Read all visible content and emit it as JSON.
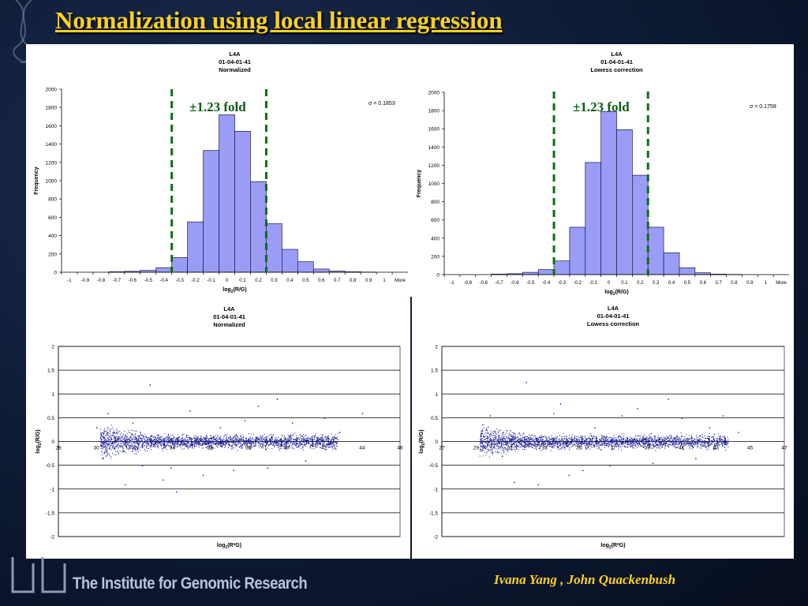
{
  "slide": {
    "title": "Normalization using local linear regression",
    "institute": "The Institute for Genomic Research",
    "authors": "Ivana Yang , John Quackenbush"
  },
  "colors": {
    "bar_fill": "#9a9cf5",
    "bar_stroke": "#1a1a4d",
    "marker": "#0d0d8c",
    "fold_line": "#0a6e14",
    "title": "#ffd21a"
  },
  "annotations": {
    "fold_left": "±1.23 fold",
    "fold_right": "±1.23 fold"
  },
  "chart_data": [
    {
      "type": "bar",
      "title": "L4A",
      "subtitle": "01-04-01-41",
      "subtitle2": "Normalized",
      "categories": [
        "-1",
        "-0.9",
        "-0.8",
        "-0.7",
        "-0.6",
        "-0.5",
        "-0.4",
        "-0.3",
        "-0.2",
        "-0.1",
        "0",
        "0.1",
        "0.2",
        "0.3",
        "0.4",
        "0.5",
        "0.6",
        "0.7",
        "0.8",
        "0.9",
        "1",
        "More"
      ],
      "values": [
        0,
        0,
        0,
        5,
        10,
        20,
        50,
        160,
        550,
        1330,
        1720,
        1540,
        990,
        530,
        250,
        115,
        35,
        12,
        5,
        2,
        0,
        0
      ],
      "xlabel": "log2(R/G)",
      "ylabel": "Frequency",
      "ylim": [
        0,
        2000
      ],
      "yticks": [
        "0",
        "200",
        "400",
        "600",
        "800",
        "1000",
        "1200",
        "1400",
        "1600",
        "1800",
        "2000"
      ],
      "annotation": "σ = 0.1853",
      "fold_lines_at": [
        -0.35,
        0.25
      ]
    },
    {
      "type": "bar",
      "title": "L4A",
      "subtitle": "01-04-01-41",
      "subtitle2": "Lowess correction",
      "categories": [
        "-1",
        "-0.9",
        "-0.8",
        "-0.7",
        "-0.6",
        "-0.5",
        "-0.4",
        "-0.3",
        "-0.2",
        "-0.1",
        "0",
        "0.1",
        "0.2",
        "0.3",
        "0.4",
        "0.5",
        "0.6",
        "0.7",
        "0.8",
        "0.9",
        "1",
        "More"
      ],
      "values": [
        0,
        0,
        0,
        5,
        10,
        25,
        55,
        150,
        520,
        1230,
        1790,
        1590,
        1090,
        520,
        240,
        75,
        20,
        5,
        2,
        0,
        0,
        0
      ],
      "xlabel": "log2(R/G)",
      "ylabel": "Frequency",
      "ylim": [
        0,
        2000
      ],
      "yticks": [
        "0",
        "200",
        "400",
        "600",
        "800",
        "1000",
        "1200",
        "1400",
        "1600",
        "1800",
        "2000"
      ],
      "annotation": "σ = 0.1758",
      "fold_lines_at": [
        -0.35,
        0.25
      ]
    },
    {
      "type": "scatter",
      "title": "L4A",
      "subtitle": "01-04-01-41",
      "subtitle2": "Normalized",
      "xlabel": "log2(R*G)",
      "ylabel": "log2(R/G)",
      "xlim": [
        28,
        46
      ],
      "ylim": [
        -2,
        2
      ],
      "xticks": [
        "28",
        "30",
        "32",
        "34",
        "36",
        "38",
        "40",
        "42",
        "44",
        "46"
      ],
      "yticks": [
        "-2",
        "-1.5",
        "-1",
        "-0.5",
        "0",
        "0.5",
        "1",
        "1.5",
        "2"
      ],
      "points": [
        [
          30.0,
          0.3
        ],
        [
          30.6,
          0.6
        ],
        [
          31.5,
          -0.9
        ],
        [
          31.9,
          0.4
        ],
        [
          32.4,
          -0.5
        ],
        [
          32.8,
          1.2
        ],
        [
          33.5,
          -0.8
        ],
        [
          33.9,
          -0.55
        ],
        [
          34.2,
          -1.05
        ],
        [
          34.9,
          0.65
        ],
        [
          35.6,
          -0.7
        ],
        [
          36.5,
          0.3
        ],
        [
          37.2,
          -0.6
        ],
        [
          37.8,
          0.45
        ],
        [
          38.5,
          0.75
        ],
        [
          39.0,
          -0.55
        ],
        [
          39.5,
          0.9
        ],
        [
          40.3,
          0.4
        ],
        [
          41.0,
          -0.4
        ],
        [
          42.0,
          0.5
        ],
        [
          42.8,
          0.2
        ],
        [
          44.0,
          0.6
        ],
        [
          31.0,
          0.05
        ],
        [
          32.0,
          -0.1
        ],
        [
          33.0,
          0.1
        ],
        [
          34.0,
          -0.05
        ],
        [
          35.0,
          0.0
        ],
        [
          36.0,
          0.08
        ],
        [
          37.0,
          -0.08
        ],
        [
          38.0,
          0.05
        ],
        [
          39.0,
          0.0
        ],
        [
          40.0,
          -0.02
        ],
        [
          41.0,
          0.03
        ]
      ]
    },
    {
      "type": "scatter",
      "title": "L4A",
      "subtitle": "01-04-01-41",
      "subtitle2": "Lowess correction",
      "xlabel": "log2(R*G)",
      "ylabel": "log2(R/G)",
      "xlim": [
        27,
        47
      ],
      "ylim": [
        -2,
        2
      ],
      "xticks": [
        "27",
        "29",
        "31",
        "33",
        "35",
        "37",
        "39",
        "41",
        "43",
        "45",
        "47"
      ],
      "yticks": [
        "-2",
        "-1.5",
        "-1",
        "-0.5",
        "0",
        "0.5",
        "1",
        "1.5",
        "2"
      ],
      "points": [
        [
          29.8,
          0.55
        ],
        [
          30.5,
          -0.3
        ],
        [
          31.2,
          -0.85
        ],
        [
          31.9,
          1.25
        ],
        [
          32.6,
          -0.9
        ],
        [
          33.5,
          0.6
        ],
        [
          33.9,
          0.8
        ],
        [
          34.4,
          -0.7
        ],
        [
          35.2,
          -0.6
        ],
        [
          35.9,
          0.3
        ],
        [
          36.8,
          -0.5
        ],
        [
          37.5,
          0.55
        ],
        [
          38.4,
          0.7
        ],
        [
          39.3,
          -0.45
        ],
        [
          40.2,
          0.9
        ],
        [
          41.0,
          0.5
        ],
        [
          41.8,
          -0.35
        ],
        [
          42.6,
          0.3
        ],
        [
          43.4,
          0.55
        ],
        [
          44.3,
          0.2
        ],
        [
          30.5,
          0.05
        ],
        [
          31.5,
          0.0
        ],
        [
          32.5,
          -0.05
        ],
        [
          33.5,
          0.05
        ],
        [
          34.5,
          0.0
        ],
        [
          35.5,
          -0.03
        ],
        [
          36.5,
          0.04
        ],
        [
          37.5,
          0.0
        ],
        [
          38.5,
          -0.02
        ],
        [
          39.5,
          0.03
        ],
        [
          40.5,
          0.0
        ]
      ]
    }
  ]
}
